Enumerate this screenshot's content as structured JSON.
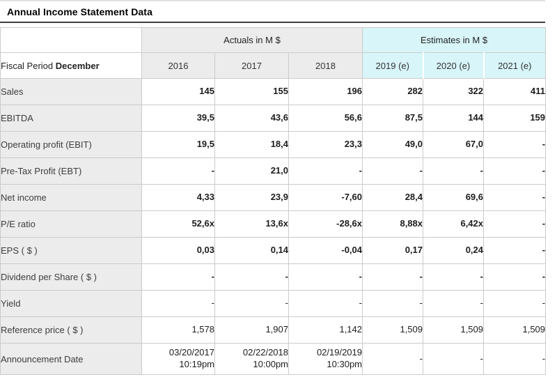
{
  "page": {
    "title": "Annual Income Statement Data"
  },
  "table": {
    "fiscal_label": "Fiscal Period",
    "fiscal_value": "December",
    "group_headers": {
      "actuals": "Actuals in M $",
      "estimates": "Estimates in M $"
    },
    "year_headers": [
      "2016",
      "2017",
      "2018",
      "2019 (e)",
      "2020 (e)",
      "2021 (e)"
    ],
    "rows": [
      {
        "key": "sales",
        "label": "Sales",
        "bold": true,
        "values": [
          "145",
          "155",
          "196",
          "282",
          "322",
          "411"
        ]
      },
      {
        "key": "ebitda",
        "label": "EBITDA",
        "bold": true,
        "values": [
          "39,5",
          "43,6",
          "56,6",
          "87,5",
          "144",
          "159"
        ]
      },
      {
        "key": "operating-profit-ebit",
        "label": "Operating profit (EBIT)",
        "bold": true,
        "values": [
          "19,5",
          "18,4",
          "23,3",
          "49,0",
          "67,0",
          "-"
        ]
      },
      {
        "key": "pretax-profit-ebt",
        "label": "Pre-Tax Profit (EBT)",
        "bold": true,
        "values": [
          "-",
          "21,0",
          "-",
          "-",
          "-",
          "-"
        ]
      },
      {
        "key": "net-income",
        "label": "Net income",
        "bold": true,
        "values": [
          "4,33",
          "23,9",
          "-7,60",
          "28,4",
          "69,6",
          "-"
        ]
      },
      {
        "key": "pe-ratio",
        "label": "P/E ratio",
        "bold": true,
        "values": [
          "52,6x",
          "13,6x",
          "-28,6x",
          "8,88x",
          "6,42x",
          "-"
        ]
      },
      {
        "key": "eps",
        "label": "EPS ( $ )",
        "bold": true,
        "values": [
          "0,03",
          "0,14",
          "-0,04",
          "0,17",
          "0,24",
          "-"
        ]
      },
      {
        "key": "dividend-per-share",
        "label": "Dividend per Share ( $ )",
        "bold": true,
        "values": [
          "-",
          "-",
          "-",
          "-",
          "-",
          "-"
        ]
      },
      {
        "key": "yield",
        "label": "Yield",
        "bold": false,
        "values": [
          "-",
          "-",
          "-",
          "-",
          "-",
          "-"
        ]
      },
      {
        "key": "reference-price",
        "label": "Reference price ( $ )",
        "bold": false,
        "values": [
          "1,578",
          "1,907",
          "1,142",
          "1,509",
          "1,509",
          "1,509"
        ]
      },
      {
        "key": "announcement-date",
        "label": "Announcement Date",
        "bold": false,
        "tall": true,
        "values": [
          "03/20/2017\n10:19pm",
          "02/22/2018\n10:00pm",
          "02/19/2019\n10:30pm",
          "-",
          "-",
          "-"
        ]
      }
    ]
  },
  "colors": {
    "estimates_bg": "#d8f5f9",
    "actuals_header_bg": "#ececec",
    "row_label_bg": "#ececec",
    "table_border": "#cbcbcb",
    "title_rule": "#3f3f3f"
  }
}
